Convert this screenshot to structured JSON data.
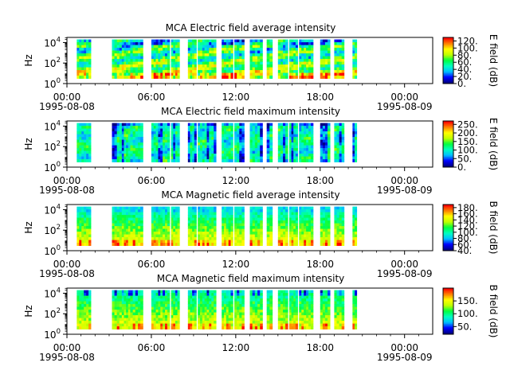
{
  "chart_data": [
    {
      "type": "heatmap",
      "title": "MCA  Electric field average intensity",
      "ylabel": "Hz",
      "colorbar_label": "E field (dB)",
      "colorbar_range": [
        0,
        130
      ],
      "colorbar_ticks": [
        "0.",
        "20.",
        "40.",
        "60.",
        "80.",
        "100.",
        "120."
      ],
      "kind": "e_avg"
    },
    {
      "type": "heatmap",
      "title": "MCA  Electric field maximum intensity",
      "ylabel": "Hz",
      "colorbar_label": "E field (dB)",
      "colorbar_range": [
        0,
        270
      ],
      "colorbar_ticks": [
        "0.",
        "50.",
        "100.",
        "150.",
        "200.",
        "250."
      ],
      "kind": "e_max"
    },
    {
      "type": "heatmap",
      "title": "MCA  Magnetic field average intensity",
      "ylabel": "Hz",
      "colorbar_label": "B field (dB)",
      "colorbar_range": [
        40,
        190
      ],
      "colorbar_ticks": [
        "40.",
        "60.",
        "80.",
        "100.",
        "120.",
        "140.",
        "160.",
        "180."
      ],
      "kind": "b_avg"
    },
    {
      "type": "heatmap",
      "title": "MCA  Magnetic field maximum intensity",
      "ylabel": "Hz",
      "colorbar_label": "B field (dB)",
      "colorbar_range": [
        20,
        200
      ],
      "colorbar_ticks": [
        "50.",
        "100.",
        "150."
      ],
      "kind": "b_max"
    }
  ],
  "shared_axes": {
    "x_range_hours": [
      0,
      26
    ],
    "x_ticks": [
      {
        "hour": 0,
        "time": "00:00",
        "date": "1995-08-08"
      },
      {
        "hour": 6,
        "time": "06:00",
        "date": ""
      },
      {
        "hour": 12,
        "time": "12:00",
        "date": ""
      },
      {
        "hour": 18,
        "time": "18:00",
        "date": ""
      },
      {
        "hour": 24,
        "time": "00:00",
        "date": "1995-08-09"
      }
    ],
    "y_scale": "log",
    "y_range_log10": [
      0,
      4.5
    ],
    "y_ticks": [
      {
        "base": "10",
        "exp": "0",
        "log10": 0
      },
      {
        "base": "10",
        "exp": "2",
        "log10": 2
      },
      {
        "base": "10",
        "exp": "4",
        "log10": 4
      }
    ],
    "data_freq_range_log10": [
      0.5,
      4.3
    ]
  },
  "data_intervals_hours": [
    [
      0.7,
      1.7
    ],
    [
      3.2,
      3.9
    ],
    [
      3.9,
      4.5
    ],
    [
      4.5,
      5.4
    ],
    [
      6.0,
      6.8
    ],
    [
      6.8,
      7.3
    ],
    [
      7.4,
      8.0
    ],
    [
      8.6,
      9.2
    ],
    [
      9.3,
      10.1
    ],
    [
      10.1,
      10.6
    ],
    [
      11.0,
      11.8
    ],
    [
      11.9,
      12.6
    ],
    [
      13.0,
      13.9
    ],
    [
      14.2,
      14.6
    ],
    [
      15.0,
      15.7
    ],
    [
      15.8,
      16.4
    ],
    [
      16.5,
      17.5
    ],
    [
      18.0,
      18.7
    ],
    [
      19.0,
      19.7
    ],
    [
      20.3,
      20.6
    ]
  ],
  "colors": {
    "colormap": [
      "#000080",
      "#0000ff",
      "#00c0ff",
      "#00ffc0",
      "#00ff40",
      "#c0ff00",
      "#ffff00",
      "#ff8000",
      "#ff0000"
    ]
  }
}
